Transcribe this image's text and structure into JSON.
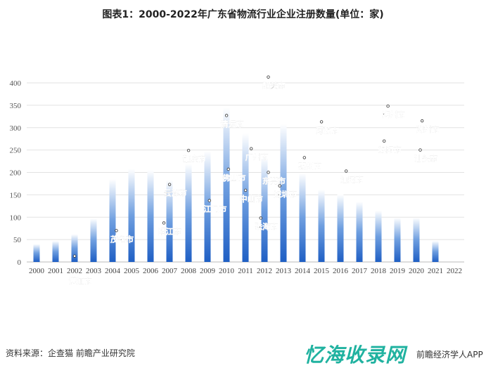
{
  "chart_data": {
    "type": "bar",
    "title": "图表1：2000-2022年广东省物流行业企业注册数量(单位：家)",
    "categories": [
      "2000",
      "2001",
      "2002",
      "2003",
      "2004",
      "2005",
      "2006",
      "2007",
      "2008",
      "2009",
      "2010",
      "2011",
      "2012",
      "2013",
      "2014",
      "2015",
      "2016",
      "2017",
      "2018",
      "2019",
      "2020",
      "2021",
      "2022"
    ],
    "values": [
      40,
      47,
      62,
      97,
      185,
      208,
      205,
      183,
      219,
      248,
      345,
      287,
      235,
      308,
      198,
      162,
      151,
      135,
      115,
      99,
      99,
      47,
      0
    ],
    "ylim": [
      0,
      400
    ],
    "yticks": [
      0,
      50,
      100,
      150,
      200,
      250,
      300,
      350,
      400
    ],
    "grid": true,
    "bar_color": "#1f5fc4",
    "annotations": [
      {
        "text": "湛江市",
        "x": 2002.3,
        "y": -12
      },
      {
        "text": "茂名市",
        "x": 2004.5,
        "y": 45
      },
      {
        "text": "阳江市",
        "x": 2007,
        "y": 62
      },
      {
        "text": "云浮市",
        "x": 2007.3,
        "y": 148
      },
      {
        "text": "肇庆市",
        "x": 2008.3,
        "y": 224
      },
      {
        "text": "江门市",
        "x": 2009.4,
        "y": 112
      },
      {
        "text": "清远市",
        "x": 2010.3,
        "y": 302
      },
      {
        "text": "佛山市",
        "x": 2010.4,
        "y": 182
      },
      {
        "text": "中山市",
        "x": 2011.3,
        "y": 135
      },
      {
        "text": "广州市",
        "x": 2011.6,
        "y": 228
      },
      {
        "text": "珠海市",
        "x": 2012.1,
        "y": 73
      },
      {
        "text": "东莞市",
        "x": 2012.5,
        "y": 175
      },
      {
        "text": "深圳市",
        "x": 2013.1,
        "y": 145
      },
      {
        "text": "韶关市",
        "x": 2012.5,
        "y": 388
      },
      {
        "text": "惠州市",
        "x": 2014.4,
        "y": 208
      },
      {
        "text": "河源市",
        "x": 2015.3,
        "y": 288
      },
      {
        "text": "汕尾市",
        "x": 2016.6,
        "y": 178
      },
      {
        "text": "梅州市",
        "x": 2018.8,
        "y": 323
      },
      {
        "text": "揭阳市",
        "x": 2018.6,
        "y": 245
      },
      {
        "text": "潮州市",
        "x": 2020.6,
        "y": 290
      },
      {
        "text": "汕头市",
        "x": 2020.5,
        "y": 225
      }
    ]
  },
  "footer": {
    "source": "资料来源：企查猫 前瞻产业研究院",
    "app": "前瞻经济学人APP",
    "watermark": "忆海收录网"
  }
}
